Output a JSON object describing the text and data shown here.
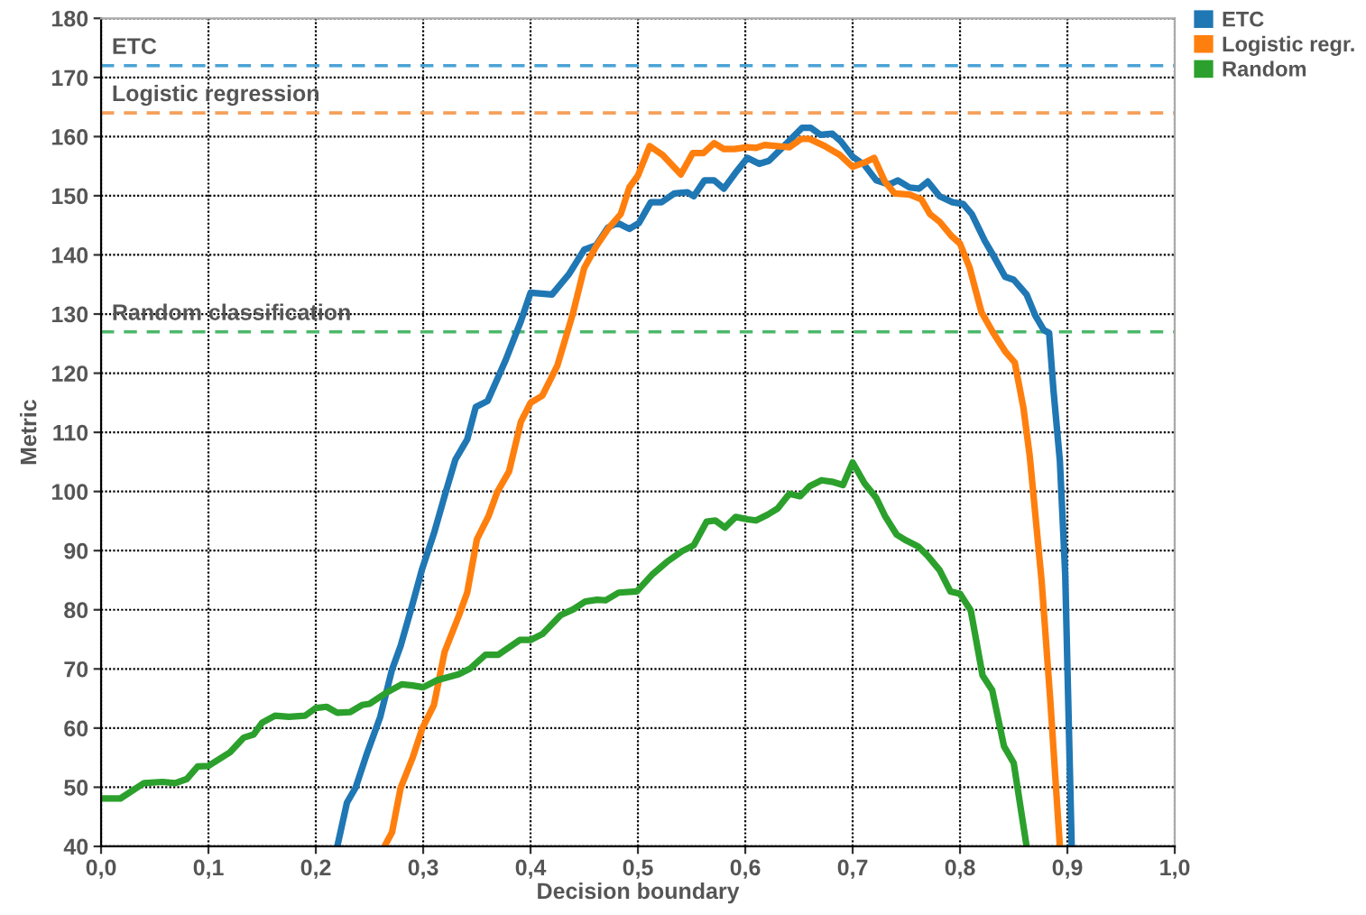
{
  "chart_data": {
    "type": "line",
    "xlabel": "Decision boundary",
    "ylabel": "Metric",
    "xlim": [
      0,
      1
    ],
    "ylim": [
      40,
      180
    ],
    "xticks": [
      {
        "value": 0,
        "label": "0,0"
      },
      {
        "value": 0.1,
        "label": "0,1"
      },
      {
        "value": 0.2,
        "label": "0,2"
      },
      {
        "value": 0.3,
        "label": "0,3"
      },
      {
        "value": 0.4,
        "label": "0,4"
      },
      {
        "value": 0.5,
        "label": "0,5"
      },
      {
        "value": 0.6,
        "label": "0,6"
      },
      {
        "value": 0.7,
        "label": "0,7"
      },
      {
        "value": 0.8,
        "label": "0,8"
      },
      {
        "value": 0.9,
        "label": "0,9"
      },
      {
        "value": 1,
        "label": "1,0"
      }
    ],
    "yticks": [
      40,
      50,
      60,
      70,
      80,
      90,
      100,
      110,
      120,
      130,
      140,
      150,
      160,
      170,
      180
    ],
    "grid": true,
    "legend": "top right",
    "marker": "none",
    "line_style": "solid",
    "ref_lines": [
      {
        "axis": "y",
        "value": 172,
        "label": "ETC",
        "color": "#4aa3d6",
        "line_style": "dashed"
      },
      {
        "axis": "y",
        "value": 164,
        "label": "Logistic regression",
        "color": "#f5a05a",
        "line_style": "dashed"
      },
      {
        "axis": "y",
        "value": 127,
        "label": "Random classification",
        "color": "#4cb86a",
        "line_style": "dashed"
      }
    ],
    "series": [
      {
        "name": "ETC",
        "color": "#1f77b4",
        "x": [
          0.22,
          0.229,
          0.237,
          0.248,
          0.26,
          0.271,
          0.279,
          0.29,
          0.299,
          0.31,
          0.321,
          0.33,
          0.341,
          0.349,
          0.36,
          0.377,
          0.391,
          0.4,
          0.42,
          0.436,
          0.45,
          0.461,
          0.472,
          0.481,
          0.492,
          0.501,
          0.512,
          0.522,
          0.534,
          0.546,
          0.552,
          0.562,
          0.571,
          0.58,
          0.591,
          0.602,
          0.613,
          0.622,
          0.636,
          0.653,
          0.661,
          0.67,
          0.681,
          0.689,
          0.7,
          0.711,
          0.722,
          0.734,
          0.742,
          0.753,
          0.762,
          0.77,
          0.781,
          0.793,
          0.803,
          0.811,
          0.823,
          0.831,
          0.842,
          0.85,
          0.862,
          0.87,
          0.878,
          0.883,
          0.887,
          0.893,
          0.898,
          0.904
        ],
        "values": [
          40,
          47.4,
          49.9,
          55.9,
          61.9,
          69.9,
          73.9,
          80.9,
          86.9,
          92.9,
          99.9,
          105.4,
          108.8,
          114.3,
          115.3,
          122.3,
          128.8,
          133.6,
          133.3,
          136.8,
          140.9,
          141.6,
          144.6,
          145.4,
          144.4,
          145.4,
          148.9,
          148.9,
          150.4,
          150.6,
          149.9,
          152.6,
          152.6,
          151.2,
          153.9,
          156.4,
          155.4,
          155.9,
          158.4,
          161.5,
          161.5,
          160.3,
          160.5,
          159.2,
          156.6,
          155.2,
          152.6,
          151.9,
          152.6,
          151.4,
          151.2,
          152.4,
          149.9,
          148.9,
          148.6,
          146.9,
          142.4,
          139.9,
          136.3,
          135.8,
          133.3,
          129.8,
          127.3,
          126.8,
          117.2,
          105.2,
          85.9,
          40
        ]
      },
      {
        "name": "Logistic regr.",
        "color": "#ff7f0e",
        "x": [
          0.264,
          0.271,
          0.279,
          0.29,
          0.299,
          0.31,
          0.32,
          0.333,
          0.341,
          0.35,
          0.361,
          0.369,
          0.38,
          0.391,
          0.4,
          0.411,
          0.425,
          0.439,
          0.45,
          0.461,
          0.473,
          0.484,
          0.492,
          0.5,
          0.511,
          0.523,
          0.54,
          0.551,
          0.561,
          0.571,
          0.58,
          0.59,
          0.602,
          0.61,
          0.618,
          0.641,
          0.652,
          0.66,
          0.674,
          0.688,
          0.7,
          0.711,
          0.72,
          0.73,
          0.739,
          0.753,
          0.764,
          0.772,
          0.781,
          0.792,
          0.8,
          0.809,
          0.82,
          0.831,
          0.842,
          0.851,
          0.859,
          0.865,
          0.876,
          0.884,
          0.893
        ],
        "values": [
          40,
          42.4,
          49.9,
          54.9,
          59.9,
          63.9,
          72.9,
          78.9,
          82.9,
          91.9,
          95.9,
          99.9,
          103.4,
          111.8,
          115,
          116.2,
          121.3,
          129.8,
          137.8,
          141.4,
          144.6,
          146.9,
          151.4,
          153.4,
          158.4,
          156.9,
          153.6,
          157.2,
          157.2,
          158.9,
          157.9,
          157.9,
          158.2,
          158.1,
          158.6,
          158.2,
          159.6,
          159.6,
          158.4,
          156.9,
          154.9,
          155.6,
          156.4,
          152.4,
          150.4,
          150.2,
          149.4,
          146.9,
          145.6,
          143.2,
          141.9,
          137.8,
          130.3,
          126.8,
          123.7,
          121.8,
          114.2,
          105.9,
          84.9,
          64.9,
          40
        ]
      },
      {
        "name": "Random",
        "color": "#2ca02c",
        "x": [
          0,
          0.018,
          0.04,
          0.057,
          0.069,
          0.08,
          0.09,
          0.1,
          0.12,
          0.133,
          0.142,
          0.15,
          0.162,
          0.175,
          0.19,
          0.2,
          0.21,
          0.22,
          0.232,
          0.243,
          0.25,
          0.265,
          0.28,
          0.29,
          0.3,
          0.313,
          0.333,
          0.344,
          0.358,
          0.37,
          0.39,
          0.4,
          0.411,
          0.428,
          0.44,
          0.451,
          0.462,
          0.47,
          0.482,
          0.499,
          0.513,
          0.527,
          0.541,
          0.552,
          0.564,
          0.572,
          0.581,
          0.591,
          0.602,
          0.61,
          0.621,
          0.63,
          0.641,
          0.651,
          0.66,
          0.671,
          0.682,
          0.691,
          0.7,
          0.711,
          0.722,
          0.73,
          0.741,
          0.75,
          0.761,
          0.77,
          0.781,
          0.791,
          0.8,
          0.81,
          0.821,
          0.83,
          0.841,
          0.85,
          0.862
        ],
        "values": [
          48.1,
          48.1,
          50.7,
          50.9,
          50.7,
          51.4,
          53.5,
          53.6,
          55.9,
          58.4,
          58.9,
          60.9,
          62.1,
          61.9,
          62.1,
          63.4,
          63.6,
          62.6,
          62.7,
          63.9,
          64.1,
          65.9,
          67.4,
          67.2,
          66.9,
          68.1,
          69.1,
          70.1,
          72.4,
          72.4,
          74.9,
          74.9,
          75.9,
          79.1,
          80.1,
          81.4,
          81.7,
          81.6,
          82.9,
          83.1,
          85.9,
          88.1,
          89.9,
          90.9,
          94.9,
          95.1,
          93.9,
          95.7,
          95.3,
          95.1,
          96.1,
          97.1,
          99.6,
          99.2,
          100.9,
          101.9,
          101.6,
          101.1,
          104.9,
          101.4,
          98.9,
          95.9,
          92.7,
          91.7,
          90.7,
          89.1,
          86.7,
          83.1,
          82.7,
          79.9,
          68.9,
          66.4,
          56.9,
          54.1,
          40
        ]
      }
    ]
  }
}
